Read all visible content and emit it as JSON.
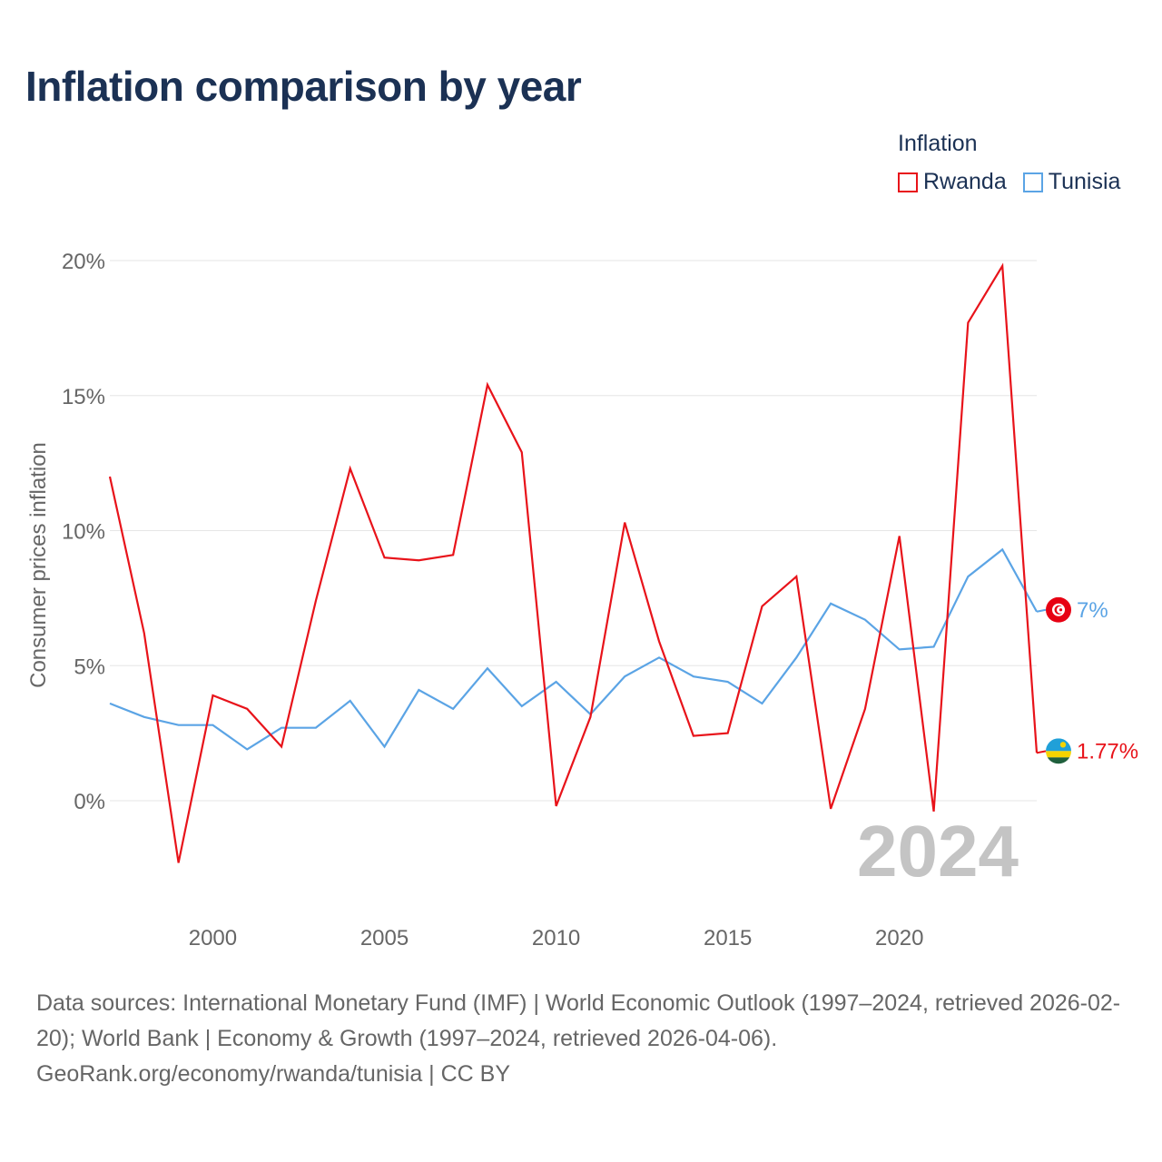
{
  "title": "Inflation comparison by year",
  "legend": {
    "title": "Inflation",
    "items": [
      {
        "label": "Rwanda",
        "color": "#e8131a"
      },
      {
        "label": "Tunisia",
        "color": "#5ba4e5"
      }
    ]
  },
  "source": {
    "line1": "Data sources: International Monetary Fund (IMF) | World Economic Outlook (1997–2024, retrieved 2026-02-20); World Bank | Economy & Growth (1997–2024, retrieved 2026-04-06).",
    "line2": "GeoRank.org/economy/rwanda/tunisia | CC BY"
  },
  "chart_data": {
    "type": "line",
    "title": "Inflation comparison by year",
    "ylabel": "Consumer prices inflation",
    "xlabel": "",
    "xlim": [
      1997,
      2024
    ],
    "ylim": [
      -4,
      20
    ],
    "x_ticks": [
      2000,
      2005,
      2010,
      2015,
      2020
    ],
    "y_ticks": [
      0,
      5,
      10,
      15,
      20
    ],
    "y_tick_labels": [
      "0%",
      "5%",
      "10%",
      "15%",
      "20%"
    ],
    "grid": true,
    "legend_position": "top-right",
    "year_watermark": "2024",
    "x": [
      1997,
      1998,
      1999,
      2000,
      2001,
      2002,
      2003,
      2004,
      2005,
      2006,
      2007,
      2008,
      2009,
      2010,
      2011,
      2012,
      2013,
      2014,
      2015,
      2016,
      2017,
      2018,
      2019,
      2020,
      2021,
      2022,
      2023,
      2024
    ],
    "series": [
      {
        "name": "Rwanda",
        "color": "#e8131a",
        "end_label": "1.77%",
        "flag": "rwanda",
        "values": [
          12.0,
          6.2,
          -2.3,
          3.9,
          3.4,
          2.0,
          7.4,
          12.3,
          9.0,
          8.9,
          9.1,
          15.4,
          12.9,
          -0.2,
          3.1,
          10.3,
          5.9,
          2.4,
          2.5,
          7.2,
          8.3,
          -0.3,
          3.4,
          9.8,
          -0.4,
          17.7,
          19.8,
          1.77
        ]
      },
      {
        "name": "Tunisia",
        "color": "#5ba4e5",
        "end_label": "7%",
        "flag": "tunisia",
        "values": [
          3.6,
          3.1,
          2.8,
          2.8,
          1.9,
          2.7,
          2.7,
          3.7,
          2.0,
          4.1,
          3.4,
          4.9,
          3.5,
          4.4,
          3.2,
          4.6,
          5.3,
          4.6,
          4.4,
          3.6,
          5.3,
          7.3,
          6.7,
          5.6,
          5.7,
          8.3,
          9.3,
          7.0
        ]
      }
    ]
  }
}
